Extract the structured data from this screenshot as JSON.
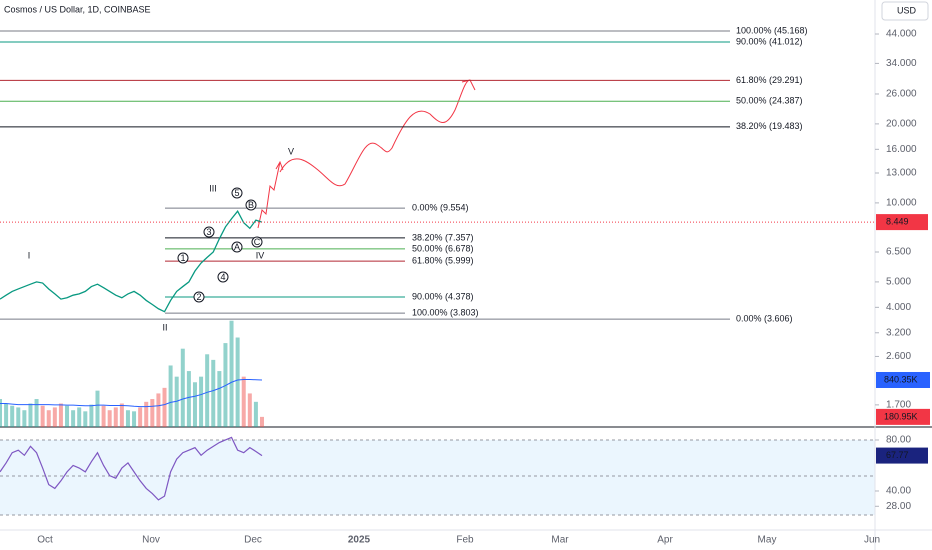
{
  "chart_data": [
    {
      "type": "line",
      "title": "Cosmos / US Dollar, 1D, COINBASE",
      "currency": "USD",
      "log_scale": true,
      "ylim": [
        1.4,
        59.3
      ],
      "yticks": [
        {
          "value": 44,
          "label": "44.000"
        },
        {
          "value": 34,
          "label": "34.000"
        },
        {
          "value": 26,
          "label": "26.000"
        },
        {
          "value": 20,
          "label": "20.000"
        },
        {
          "value": 16,
          "label": "16.000"
        },
        {
          "value": 13,
          "label": "13.000"
        },
        {
          "value": 10,
          "label": "10.000"
        },
        {
          "value": 6.5,
          "label": "6.500"
        },
        {
          "value": 5,
          "label": "5.000"
        },
        {
          "value": 4,
          "label": "4.000"
        },
        {
          "value": 3.2,
          "label": "3.200"
        },
        {
          "value": 2.6,
          "label": "2.600"
        },
        {
          "value": 1.7,
          "label": "1.700"
        }
      ],
      "xtick_labels": [
        "Oct",
        "Nov",
        "Dec",
        "2025",
        "Feb",
        "Mar",
        "Apr",
        "May",
        "Jun"
      ],
      "series": [
        {
          "color": "#089981",
          "values": [
            4.3,
            4.45,
            4.6,
            4.7,
            4.8,
            4.9,
            5.0,
            4.95,
            4.7,
            4.5,
            4.3,
            4.35,
            4.45,
            4.5,
            4.6,
            4.8,
            4.9,
            4.75,
            4.6,
            4.45,
            4.35,
            4.5,
            4.6,
            4.45,
            4.25,
            4.1,
            3.95,
            3.85,
            4.25,
            4.6,
            4.8,
            5.0,
            5.5,
            5.9,
            6.2,
            6.5,
            7.3,
            8.1,
            8.7,
            9.3,
            8.4,
            8.0,
            8.6,
            8.449
          ]
        }
      ],
      "last_value": 8.449,
      "fib_major": [
        {
          "label": "100.00% (45.168)",
          "value": 45.168,
          "color": "#787b86"
        },
        {
          "label": "90.00% (41.012)",
          "value": 41.012,
          "color": "#089981"
        },
        {
          "label": "61.80% (29.291)",
          "value": 29.291,
          "color": "#b22833"
        },
        {
          "label": "50.00% (24.387)",
          "value": 24.387,
          "color": "#4caf50"
        },
        {
          "label": "38.20% (19.483)",
          "value": 19.483,
          "color": "#131722"
        },
        {
          "label": "0.00% (3.606)",
          "value": 3.606,
          "color": "#787b86"
        }
      ],
      "fib_minor": [
        {
          "label": "0.00% (9.554)",
          "value": 9.554,
          "color": "#787b86"
        },
        {
          "label": "38.20% (7.357)",
          "value": 7.357,
          "color": "#131722"
        },
        {
          "label": "50.00% (6.678)",
          "value": 6.678,
          "color": "#4caf50"
        },
        {
          "label": "61.80% (5.999)",
          "value": 5.999,
          "color": "#b22833"
        },
        {
          "label": "90.00% (4.378)",
          "value": 4.378,
          "color": "#089981"
        },
        {
          "label": "100.00% (3.803)",
          "value": 3.803,
          "color": "#787b86"
        }
      ],
      "waves": [
        "I",
        "II",
        "III",
        "IV",
        "V"
      ],
      "subwaves": [
        "1",
        "2",
        "3",
        "4",
        "5",
        "A",
        "B",
        "C"
      ]
    },
    {
      "type": "bar",
      "ylim": [
        0,
        1913
      ],
      "color": "#26a69a",
      "values": [
        500,
        420,
        380,
        350,
        300,
        420,
        500,
        380,
        300,
        350,
        420,
        380,
        300,
        350,
        280,
        400,
        650,
        380,
        300,
        350,
        420,
        300,
        280,
        350,
        450,
        500,
        600,
        700,
        1100,
        900,
        1400,
        1000,
        800,
        900,
        1300,
        1200,
        1000,
        1500,
        1900,
        1600,
        900,
        600,
        450,
        180.95
      ],
      "value_labels_last": "180.95K",
      "ma": {
        "color": "#2962ff",
        "values": [
          420,
          420,
          410,
          400,
          400,
          400,
          400,
          400,
          400,
          395,
          395,
          390,
          390,
          385,
          380,
          380,
          390,
          390,
          385,
          385,
          385,
          380,
          370,
          365,
          365,
          370,
          380,
          400,
          440,
          460,
          500,
          530,
          550,
          580,
          620,
          650,
          690,
          740,
          800,
          840,
          850,
          850,
          845,
          840.35
        ],
        "last_label": "840.35K"
      }
    },
    {
      "type": "line",
      "ylim": [
        9.4,
        89.4
      ],
      "yticks": [
        {
          "value": 80,
          "label": "80.00"
        },
        {
          "value": 40,
          "label": "40.00"
        },
        {
          "value": 28,
          "label": "28.00"
        }
      ],
      "color": "#7e57c2",
      "values": [
        55,
        62,
        70,
        72,
        68,
        75,
        70,
        58,
        45,
        42,
        48,
        55,
        60,
        58,
        55,
        63,
        70,
        60,
        52,
        50,
        58,
        62,
        55,
        48,
        42,
        38,
        33,
        36,
        55,
        65,
        70,
        72,
        74,
        68,
        72,
        75,
        78,
        80,
        82,
        72,
        70,
        74,
        71,
        67.77
      ],
      "last_label": "67.77"
    }
  ]
}
